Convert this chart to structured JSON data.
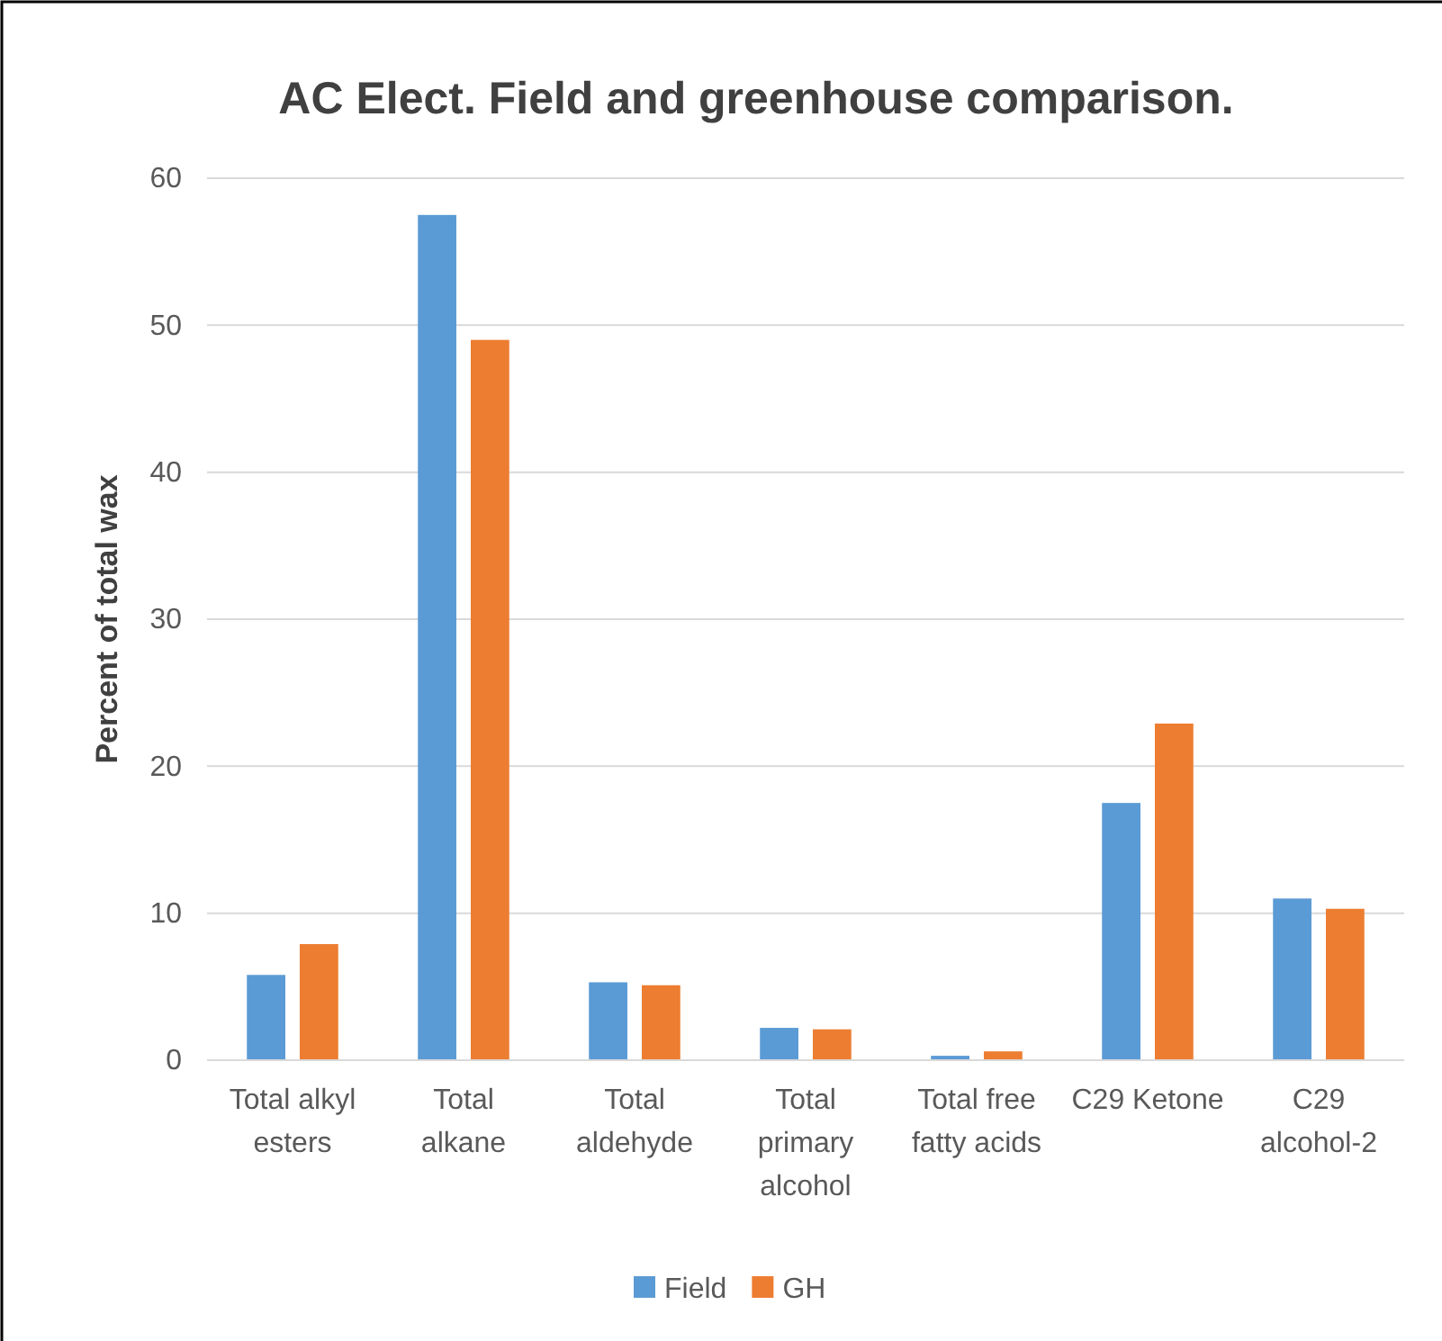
{
  "chart_data": {
    "type": "bar",
    "title": "AC Elect. Field and greenhouse comparison.",
    "ylabel": "Percent of total wax",
    "categories": [
      "Total alkyl esters",
      "Total alkane",
      "Total aldehyde",
      "Total primary alcohol",
      "Total free fatty acids",
      "C29 Ketone",
      "C29 alcohol-2"
    ],
    "series": [
      {
        "name": "Field",
        "color": "#5b9bd5",
        "values": [
          5.8,
          57.5,
          5.3,
          2.2,
          0.3,
          17.5,
          11.0
        ]
      },
      {
        "name": "GH",
        "color": "#ed7d31",
        "values": [
          7.9,
          49.0,
          5.1,
          2.1,
          0.6,
          22.9,
          10.3
        ]
      }
    ],
    "ylim": [
      0,
      60
    ],
    "yticks": [
      0,
      10,
      20,
      30,
      40,
      50,
      60
    ],
    "grid": "y",
    "legend": "bottom"
  }
}
